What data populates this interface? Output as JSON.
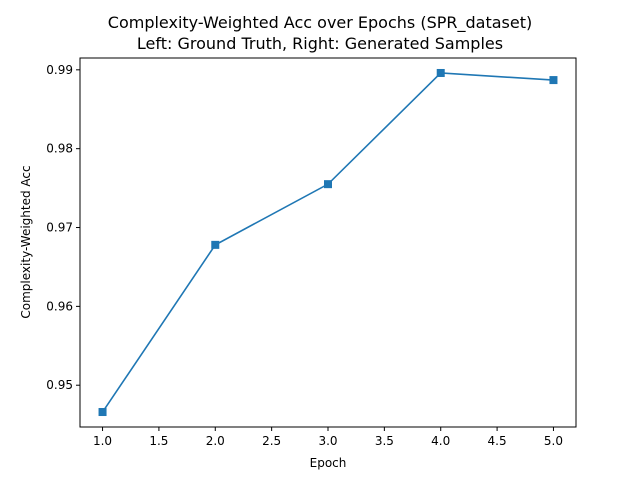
{
  "chart_data": {
    "type": "line",
    "title": "Complexity-Weighted Acc over Epochs (SPR_dataset)",
    "subtitle": "Left: Ground Truth, Right: Generated Samples",
    "xlabel": "Epoch",
    "ylabel": "Complexity-Weighted Acc",
    "x": [
      1.0,
      2.0,
      3.0,
      4.0,
      5.0
    ],
    "series": [
      {
        "values": [
          0.9466,
          0.9678,
          0.9755,
          0.9896,
          0.9887
        ]
      }
    ],
    "xlim": [
      0.8,
      5.2
    ],
    "ylim": [
      0.9447,
      0.9915
    ],
    "x_ticks": [
      "1.0",
      "1.5",
      "2.0",
      "2.5",
      "3.0",
      "3.5",
      "4.0",
      "4.5",
      "5.0"
    ],
    "y_ticks": [
      "0.95",
      "0.96",
      "0.97",
      "0.98",
      "0.99"
    ],
    "grid": false,
    "legend": "none",
    "marker": "square",
    "color": "#1f77b4"
  }
}
